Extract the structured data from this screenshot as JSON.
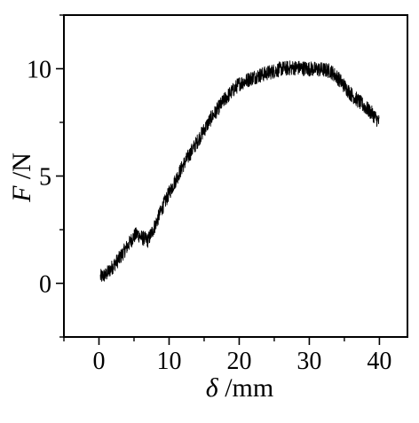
{
  "chart_data": {
    "type": "line",
    "title": "",
    "xlabel": "δ /mm",
    "ylabel": "F /N",
    "xlabel_parts": {
      "symbol": "δ",
      "unit": " /mm"
    },
    "ylabel_parts": {
      "symbol": "F",
      "unit": " /N"
    },
    "xlim": [
      -5,
      44
    ],
    "ylim": [
      -2.5,
      12.5
    ],
    "xticks": [
      0,
      10,
      20,
      30,
      40
    ],
    "xtick_labels": [
      "0",
      "10",
      "20",
      "30",
      "40"
    ],
    "yticks": [
      0,
      5,
      10
    ],
    "ytick_labels": [
      "0",
      "5",
      "10"
    ],
    "grid": false,
    "legend": "none",
    "line_color": "#000000",
    "noise_amplitude": 0.35,
    "series": [
      {
        "x": [
          0.2,
          1,
          2,
          3,
          4,
          5,
          5.5,
          6,
          7,
          8,
          9,
          10,
          12,
          14,
          16,
          18,
          20,
          22,
          24,
          26,
          28,
          30,
          32,
          33,
          34,
          35,
          36,
          37,
          38,
          39,
          40
        ],
        "y": [
          0.3,
          0.4,
          0.8,
          1.2,
          1.7,
          2.2,
          2.3,
          2.15,
          2.0,
          2.7,
          3.5,
          4.2,
          5.5,
          6.6,
          7.7,
          8.6,
          9.3,
          9.6,
          9.8,
          10.0,
          10.05,
          10.0,
          9.95,
          9.9,
          9.6,
          9.2,
          8.8,
          8.5,
          8.2,
          7.9,
          7.5
        ]
      }
    ]
  }
}
